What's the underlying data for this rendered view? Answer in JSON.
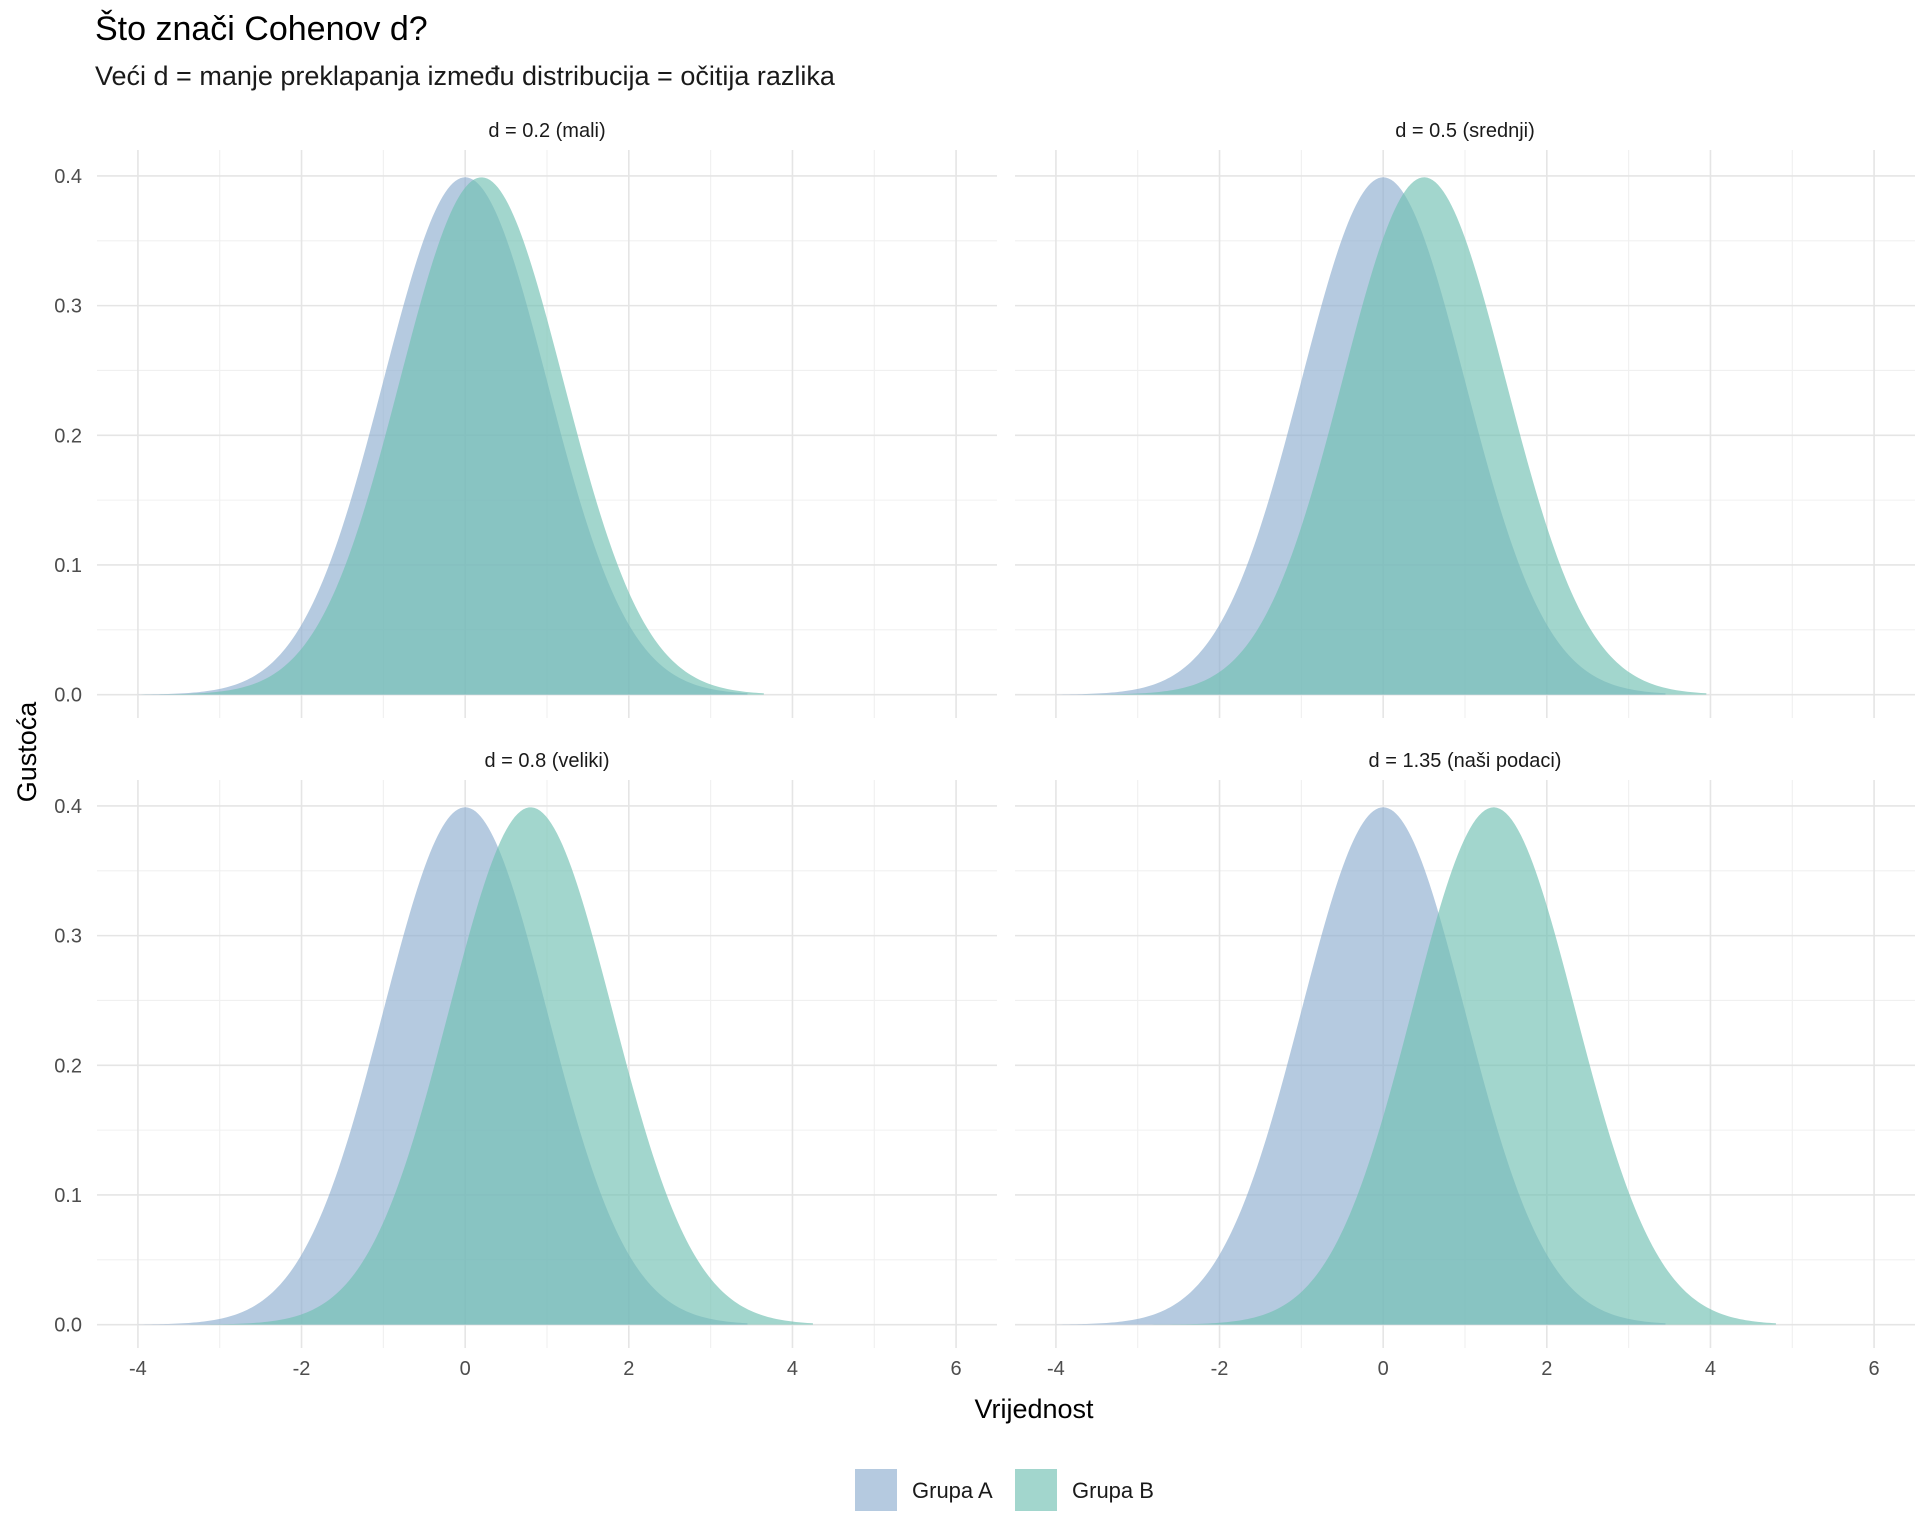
{
  "chart_data": {
    "type": "area",
    "title": "Što znači Cohenov d?",
    "subtitle": "Veći d = manje preklapanja između distribucija = očitija razlika",
    "xlabel": "Vrijednost",
    "ylabel": "Gustoća",
    "xlim": [
      -4,
      6
    ],
    "ylim": [
      0,
      0.4
    ],
    "x_ticks": [
      -4,
      -2,
      0,
      2,
      4,
      6
    ],
    "x_tick_labels": [
      "-4",
      "-2",
      "0",
      "2",
      "4",
      "6"
    ],
    "y_ticks": [
      0,
      0.1,
      0.2,
      0.3,
      0.4
    ],
    "y_tick_labels": [
      "0.0",
      "0.1",
      "0.2",
      "0.3",
      "0.4"
    ],
    "distribution": "normal",
    "sd": 1,
    "x_range": [
      -4,
      4.8
    ],
    "panels": [
      {
        "label": "d = 0.2 (mali)",
        "d": 0.2,
        "series": [
          {
            "name": "Grupa A",
            "mean": 0
          },
          {
            "name": "Grupa B",
            "mean": 0.2
          }
        ]
      },
      {
        "label": "d = 0.5 (srednji)",
        "d": 0.5,
        "series": [
          {
            "name": "Grupa A",
            "mean": 0
          },
          {
            "name": "Grupa B",
            "mean": 0.5
          }
        ]
      },
      {
        "label": "d = 0.8 (veliki)",
        "d": 0.8,
        "series": [
          {
            "name": "Grupa A",
            "mean": 0
          },
          {
            "name": "Grupa B",
            "mean": 0.8
          }
        ]
      },
      {
        "label": "d = 1.35 (naši podaci)",
        "d": 1.35,
        "series": [
          {
            "name": "Grupa A",
            "mean": 0
          },
          {
            "name": "Grupa B",
            "mean": 1.35
          }
        ]
      }
    ],
    "legend": {
      "position": "bottom",
      "items": [
        {
          "name": "Grupa A",
          "color": "#8DAECF"
        },
        {
          "name": "Grupa B",
          "color": "#70C0B2"
        }
      ]
    },
    "fill_opacity": 0.65
  }
}
